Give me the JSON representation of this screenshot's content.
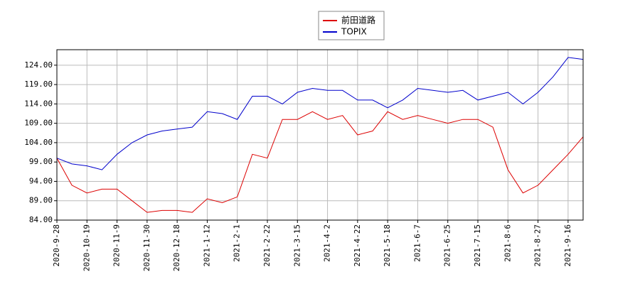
{
  "chart_data": {
    "type": "line",
    "x": [
      "2020-9-28",
      null,
      "2020-10-19",
      null,
      "2020-11-9",
      null,
      "2020-11-30",
      null,
      "2020-12-18",
      null,
      "2021-1-12",
      null,
      "2021-2-1",
      null,
      "2021-2-22",
      null,
      "2021-3-15",
      null,
      "2021-4-2",
      null,
      "2021-4-22",
      null,
      "2021-5-18",
      null,
      "2021-6-7",
      null,
      "2021-6-25",
      null,
      "2021-7-15",
      null,
      "2021-8-6",
      null,
      "2021-8-27",
      null,
      "2021-9-16",
      null
    ],
    "series": [
      {
        "name": "前田道路",
        "color": "#dd0000",
        "values": [
          100,
          93,
          91,
          92,
          92,
          89,
          86,
          86.5,
          86.5,
          86,
          89.5,
          88.5,
          90,
          101,
          100,
          110,
          110,
          112,
          110,
          111,
          106,
          107,
          112,
          110,
          111,
          110,
          109,
          110,
          110,
          108,
          97,
          91,
          93,
          97,
          101,
          105.5
        ]
      },
      {
        "name": "TOPIX",
        "color": "#0000cc",
        "values": [
          100,
          98.5,
          98,
          97,
          101,
          104,
          106,
          107,
          107.5,
          108,
          112,
          111.5,
          110,
          116,
          116,
          114,
          117,
          118,
          117.5,
          117.5,
          115,
          115,
          113,
          115,
          118,
          117.5,
          117,
          117.5,
          115,
          116,
          117,
          114,
          117,
          121,
          126,
          125.5
        ]
      }
    ],
    "ylim": [
      84,
      128
    ],
    "yticks": [
      {
        "value": 84,
        "label": "84.00"
      },
      {
        "value": 89,
        "label": "89.00"
      },
      {
        "value": 94,
        "label": "94.00"
      },
      {
        "value": 99,
        "label": "99.00"
      },
      {
        "value": 104,
        "label": "104.00"
      },
      {
        "value": 109,
        "label": "109.00"
      },
      {
        "value": 114,
        "label": "114.00"
      },
      {
        "value": 119,
        "label": "119.00"
      },
      {
        "value": 124,
        "label": "124.00"
      }
    ],
    "grid": true
  }
}
